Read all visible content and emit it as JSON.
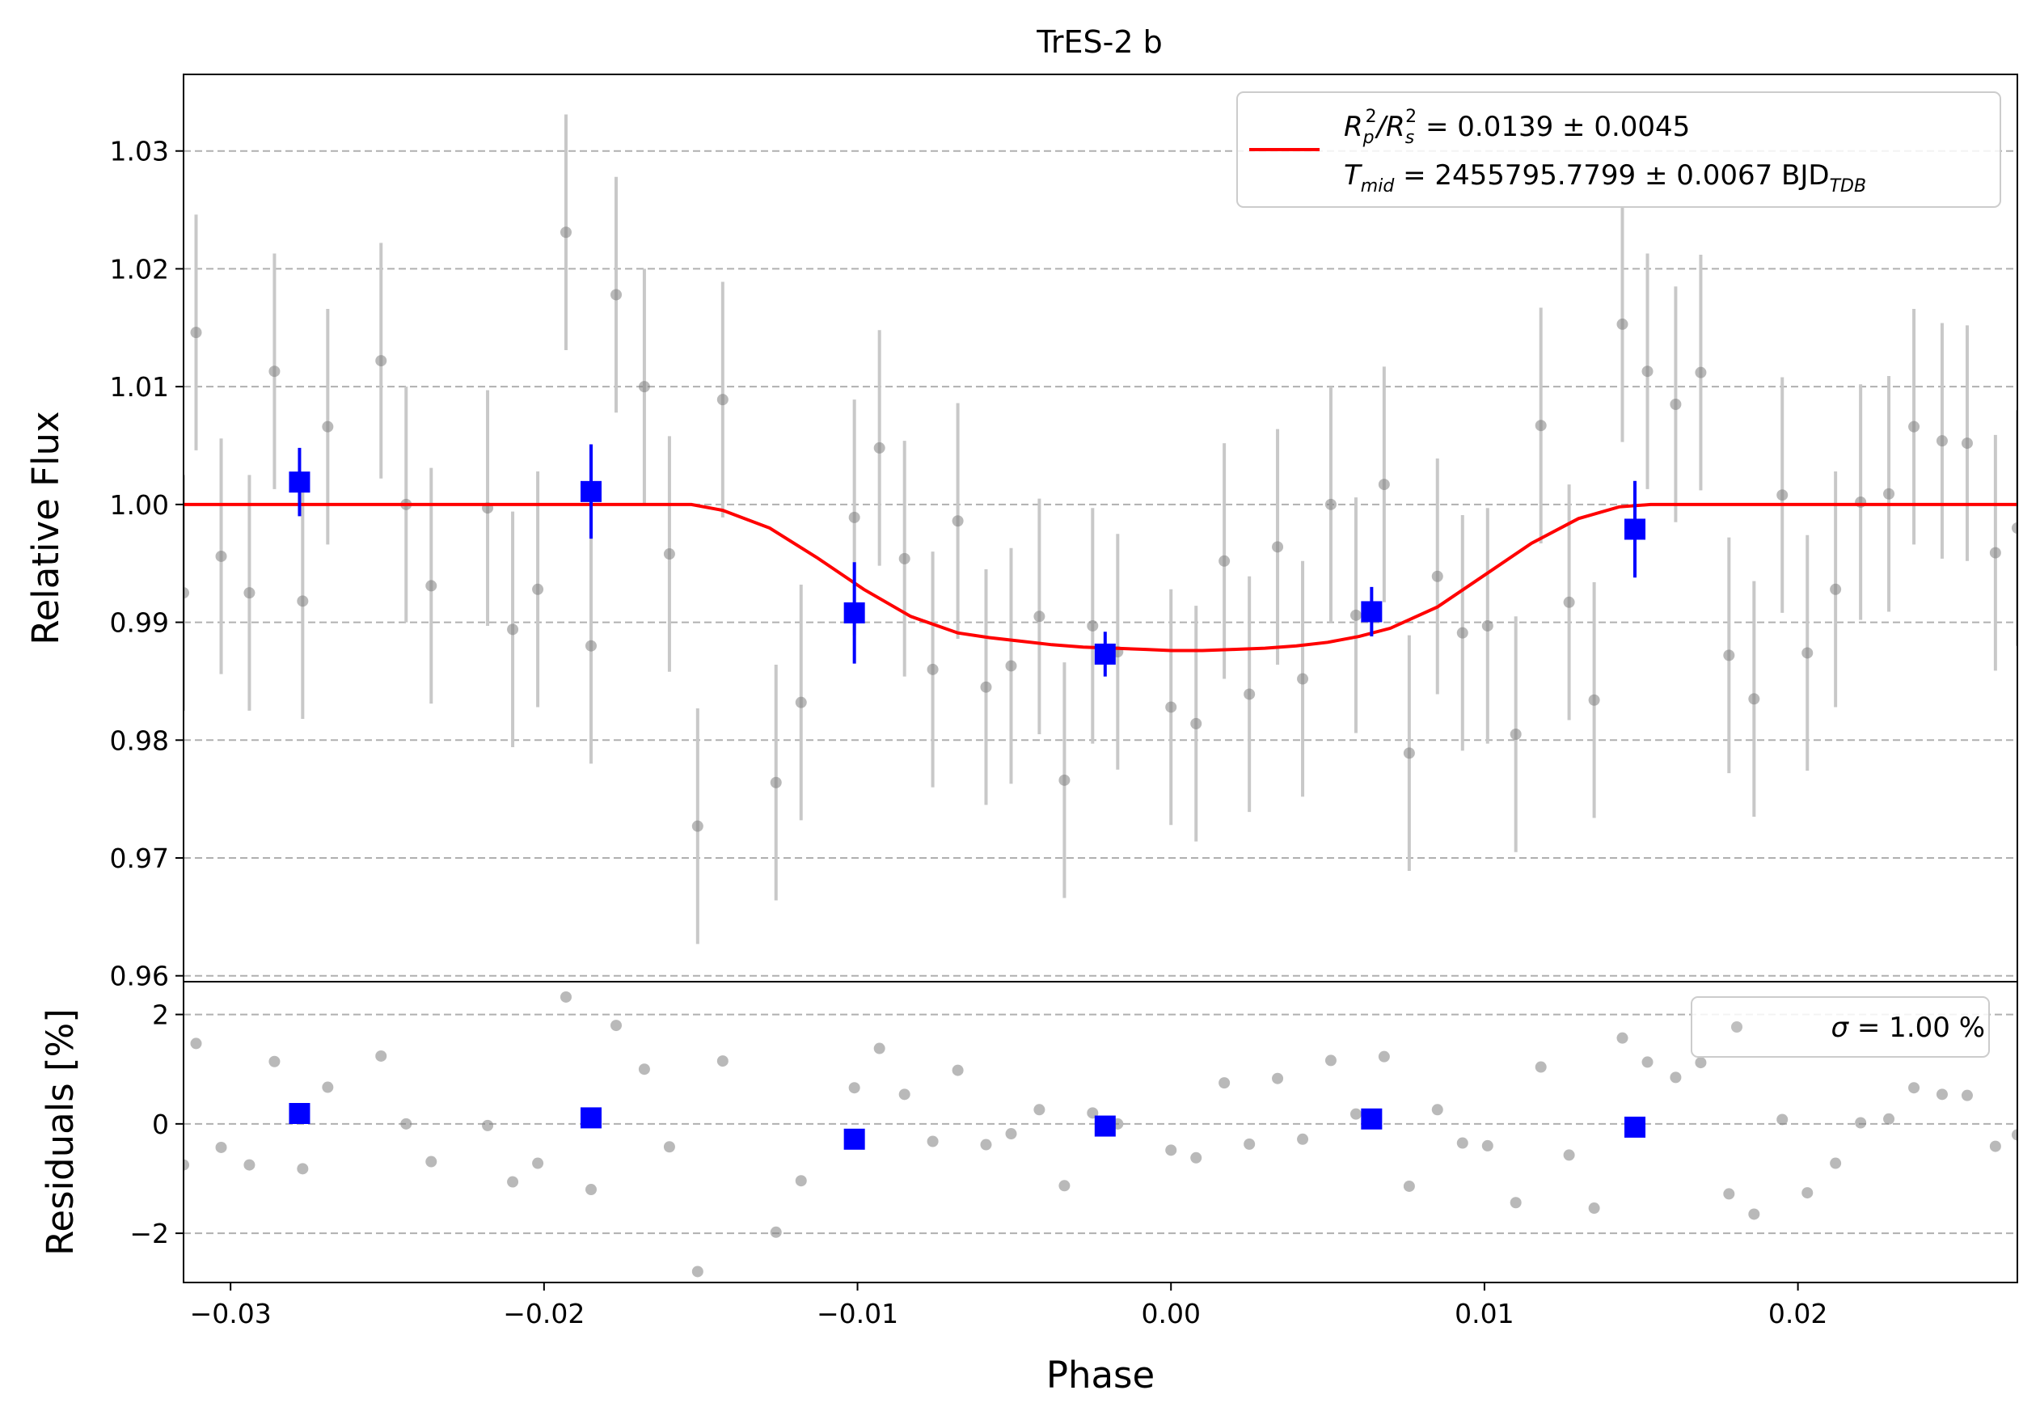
{
  "chart_data": [
    {
      "type": "scatter",
      "title": "TrES-2 b",
      "xlabel": "",
      "ylabel": "Relative Flux",
      "xlim": [
        -0.0315,
        0.027
      ],
      "ylim": [
        0.9595,
        1.0365
      ],
      "grid": "horizontal dashed",
      "x_ticks": [
        -0.03,
        -0.02,
        -0.01,
        0.0,
        0.01,
        0.02
      ],
      "y_ticks": [
        0.96,
        0.97,
        0.98,
        0.99,
        1.0,
        1.01,
        1.02,
        1.03
      ],
      "y_tick_labels": [
        "0.96",
        "0.97",
        "0.98",
        "0.99",
        "1.00",
        "1.01",
        "1.02",
        "1.03"
      ],
      "legend": {
        "placement": "top-right",
        "line1": {
          "pre": "R",
          "sub1": "p",
          "sup1": "2",
          "mid": "/R",
          "sub2": "s",
          "sup2": "2",
          "post": " = 0.0139 ± 0.0045"
        },
        "line2": {
          "pre": "T",
          "sub1": "mid",
          "post": " = 2455795.7799 ± 0.0067 BJD",
          "sub2": "TDB"
        }
      },
      "model": {
        "name": "",
        "color": "#ff0000",
        "x": [
          -0.0315,
          -0.0153,
          -0.0143,
          -0.0128,
          -0.0113,
          -0.0098,
          -0.0083,
          -0.0068,
          -0.0058,
          -0.0048,
          -0.0038,
          -0.0028,
          -0.0018,
          -0.0008,
          0.0,
          0.001,
          0.002,
          0.003,
          0.004,
          0.005,
          0.006,
          0.007,
          0.0085,
          0.01,
          0.0115,
          0.013,
          0.0143,
          0.0153,
          0.027
        ],
        "y": [
          1.0,
          1.0,
          0.9995,
          0.998,
          0.9955,
          0.9928,
          0.9905,
          0.9891,
          0.9887,
          0.9884,
          0.9881,
          0.9879,
          0.9878,
          0.9877,
          0.9876,
          0.9876,
          0.9877,
          0.9878,
          0.988,
          0.9883,
          0.9888,
          0.9895,
          0.9913,
          0.994,
          0.9967,
          0.9988,
          0.9998,
          1.0,
          1.0
        ]
      },
      "unbinned": {
        "color": "#808080",
        "errbar_color": "#c8c8c8",
        "x": [
          -0.0315,
          -0.0311,
          -0.0303,
          -0.0294,
          -0.0286,
          -0.0277,
          -0.0269,
          -0.0252,
          -0.0244,
          -0.0236,
          -0.0218,
          -0.021,
          -0.0193,
          -0.0202,
          -0.0185,
          -0.0177,
          -0.0168,
          -0.016,
          -0.0151,
          -0.0143,
          -0.0126,
          -0.0118,
          -0.0101,
          -0.0093,
          -0.0085,
          -0.0076,
          -0.0068,
          -0.0059,
          -0.0051,
          -0.0042,
          -0.0034,
          -0.0025,
          -0.0017,
          0.0,
          0.0008,
          0.0017,
          0.0025,
          0.0034,
          0.0042,
          0.0051,
          0.0059,
          0.0068,
          0.0076,
          0.0085,
          0.0093,
          0.0101,
          0.011,
          0.0118,
          0.0127,
          0.0135,
          0.0144,
          0.0152,
          0.0161,
          0.0169,
          0.0178,
          0.0186,
          0.0195,
          0.0203,
          0.0212,
          0.022,
          0.0229,
          0.0237,
          0.0246,
          0.0254,
          0.0263,
          0.027
        ],
        "y": [
          0.9925,
          1.0146,
          0.9956,
          0.9925,
          1.0113,
          0.9918,
          1.0066,
          1.0122,
          1.0,
          0.9931,
          0.9997,
          0.9894,
          1.0231,
          0.9928,
          0.988,
          1.0178,
          1.01,
          0.9958,
          0.9727,
          1.0089,
          0.9764,
          0.9832,
          0.9989,
          1.0048,
          0.9954,
          0.986,
          0.9986,
          0.9845,
          0.9863,
          0.9905,
          0.9766,
          0.9897,
          0.9875,
          0.9828,
          0.9814,
          0.9952,
          0.9839,
          0.9964,
          0.9852,
          1.0,
          0.9906,
          1.0017,
          0.9789,
          0.9939,
          0.9891,
          0.9897,
          0.9805,
          1.0067,
          0.9917,
          0.9834,
          1.0153,
          1.0113,
          1.0085,
          1.0112,
          0.9872,
          0.9835,
          1.0008,
          0.9874,
          0.9928,
          1.0002,
          1.0009,
          1.0066,
          1.0054,
          1.0052,
          0.9959,
          0.998
        ],
        "yerr": 0.01
      },
      "binned": {
        "color": "#0000ff",
        "x": [
          -0.0278,
          -0.0185,
          -0.0101,
          -0.0021,
          0.0064,
          0.0148
        ],
        "y": [
          1.0019,
          1.0011,
          0.9908,
          0.9873,
          0.9909,
          0.9979
        ],
        "yerr": [
          0.0029,
          0.004,
          0.0043,
          0.0019,
          0.0021,
          0.0041
        ]
      }
    },
    {
      "type": "scatter",
      "title": "",
      "xlabel": "Phase",
      "ylabel": "Residuals [%]",
      "xlim": [
        -0.0315,
        0.027
      ],
      "ylim": [
        -2.9,
        2.6
      ],
      "grid": "horizontal dashed",
      "x_ticks": [
        -0.03,
        -0.02,
        -0.01,
        0.0,
        0.01,
        0.02
      ],
      "x_tick_labels": [
        "−0.03",
        "−0.02",
        "−0.01",
        "0.00",
        "0.01",
        "0.02"
      ],
      "y_ticks": [
        -2,
        0,
        2
      ],
      "y_tick_labels": [
        "−2",
        "0",
        "2"
      ],
      "legend": {
        "placement": "top-right",
        "pre": "σ",
        "post": " = 1.00 %"
      },
      "unbinned": {
        "color": "#808080",
        "x": [
          -0.0315,
          -0.0311,
          -0.0303,
          -0.0294,
          -0.0286,
          -0.0277,
          -0.0269,
          -0.0252,
          -0.0244,
          -0.0236,
          -0.0218,
          -0.021,
          -0.0193,
          -0.0202,
          -0.0185,
          -0.0177,
          -0.0168,
          -0.016,
          -0.0151,
          -0.0143,
          -0.0126,
          -0.0118,
          -0.0101,
          -0.0093,
          -0.0085,
          -0.0076,
          -0.0068,
          -0.0059,
          -0.0051,
          -0.0042,
          -0.0034,
          -0.0025,
          -0.0017,
          0.0,
          0.0008,
          0.0017,
          0.0025,
          0.0034,
          0.0042,
          0.0051,
          0.0059,
          0.0068,
          0.0076,
          0.0085,
          0.0093,
          0.0101,
          0.011,
          0.0118,
          0.0127,
          0.0135,
          0.0144,
          0.0152,
          0.0161,
          0.0169,
          0.0178,
          0.0186,
          0.0195,
          0.0203,
          0.0212,
          0.022,
          0.0229,
          0.0237,
          0.0246,
          0.0254,
          0.0263,
          0.027
        ],
        "y": [
          -0.75,
          1.47,
          -0.43,
          -0.75,
          1.14,
          -0.82,
          0.67,
          1.24,
          0.0,
          -0.69,
          -0.03,
          -1.06,
          2.32,
          -0.72,
          -1.2,
          1.8,
          1.0,
          -0.42,
          -2.7,
          1.15,
          -1.98,
          -1.04,
          0.66,
          1.38,
          0.54,
          -0.32,
          0.98,
          -0.38,
          -0.18,
          0.26,
          -1.13,
          0.2,
          0.0,
          -0.48,
          -0.62,
          0.75,
          -0.37,
          0.83,
          -0.28,
          1.16,
          0.18,
          1.23,
          -1.14,
          0.26,
          -0.35,
          -0.4,
          -1.44,
          1.04,
          -0.57,
          -1.54,
          1.57,
          1.13,
          0.85,
          1.12,
          -1.28,
          -1.65,
          0.08,
          -1.26,
          -0.72,
          0.02,
          0.09,
          0.66,
          0.54,
          0.52,
          -0.41,
          -0.2
        ]
      },
      "binned": {
        "color": "#0000ff",
        "x": [
          -0.0278,
          -0.0185,
          -0.0101,
          -0.0021,
          0.0064,
          0.0148
        ],
        "y": [
          0.19,
          0.11,
          -0.28,
          -0.04,
          0.09,
          -0.06
        ]
      }
    }
  ]
}
